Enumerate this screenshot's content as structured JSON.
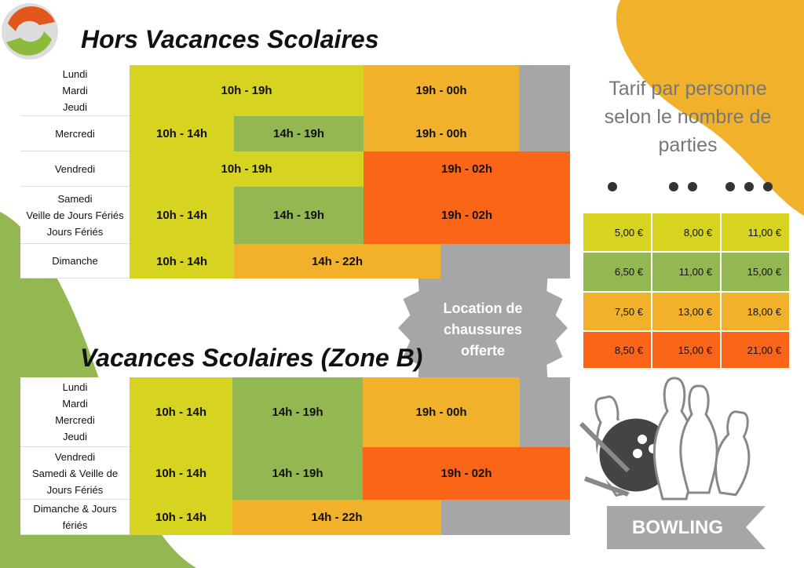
{
  "title_regular": "Hors Vacances Scolaires",
  "table_regular": {
    "rows": [
      {
        "label": [
          "Lundi",
          "Mardi",
          "Jeudi"
        ],
        "cells": [
          {
            "text": "10h - 19h",
            "color": "#d6d321"
          },
          {
            "text": "19h - 00h",
            "color": "#f2b12b"
          },
          {
            "text": null,
            "color": "#a6a6a6"
          }
        ]
      },
      {
        "label": [
          "Mercredi"
        ],
        "cells": [
          {
            "text": "10h - 14h",
            "color": "#d6d321"
          },
          {
            "text": "14h - 19h",
            "color": "#93b852"
          },
          {
            "text": "19h - 00h",
            "color": "#f2b12b"
          },
          {
            "text": null,
            "color": "#a6a6a6"
          }
        ]
      },
      {
        "label": [
          "Vendredi"
        ],
        "cells": [
          {
            "text": "10h - 19h",
            "color": "#d6d321"
          },
          {
            "text": "19h - 02h",
            "color": "#fb6517"
          }
        ]
      },
      {
        "label": [
          "Samedi",
          "Veille de Jours Fériés",
          "Jours Fériés"
        ],
        "cells": [
          {
            "text": "10h - 14h",
            "color": "#d6d321"
          },
          {
            "text": "14h - 19h",
            "color": "#93b852"
          },
          {
            "text": "19h - 02h",
            "color": "#fb6517"
          }
        ]
      },
      {
        "label": [
          "Dimanche"
        ],
        "cells": [
          {
            "text": "10h - 14h",
            "color": "#d6d321"
          },
          {
            "text": "14h - 22h",
            "color": "#f2b12b"
          },
          {
            "text": null,
            "color": "#a6a6a6"
          }
        ]
      }
    ]
  },
  "badge": [
    "Location de",
    "chaussures",
    "offerte"
  ],
  "title_holidays": "Vacances Scolaires (Zone B)",
  "table_holidays": {
    "rows": [
      {
        "label": [
          "Lundi",
          "Mardi",
          "Mercredi",
          "Jeudi"
        ],
        "cells": [
          {
            "text": "10h - 14h",
            "color": "#d6d321"
          },
          {
            "text": "14h - 19h",
            "color": "#93b852"
          },
          {
            "text": "19h - 00h",
            "color": "#f2b12b"
          },
          {
            "text": null,
            "color": "#a6a6a6"
          }
        ]
      },
      {
        "label": [
          "Vendredi",
          "Samedi & Veille de",
          "Jours Fériés"
        ],
        "cells": [
          {
            "text": "10h - 14h",
            "color": "#d6d321"
          },
          {
            "text": "14h - 19h",
            "color": "#93b852"
          },
          {
            "text": "19h - 02h",
            "color": "#fb6517"
          }
        ]
      },
      {
        "label": [
          "Dimanche & Jours",
          "fériés"
        ],
        "cells": [
          {
            "text": "10h - 14h",
            "color": "#d6d321"
          },
          {
            "text": "14h - 22h",
            "color": "#f2b12b"
          },
          {
            "text": null,
            "color": "#a6a6a6"
          }
        ]
      }
    ]
  },
  "tariff": {
    "title": [
      "Tarif par personne",
      "selon le nombre de",
      "parties"
    ],
    "rows": [
      {
        "color": "#d6d321",
        "prices": [
          "5,00 €",
          "8,00 €",
          "11,00 €"
        ]
      },
      {
        "color": "#93b852",
        "prices": [
          "6,50 €",
          "11,00 €",
          "15,00 €"
        ]
      },
      {
        "color": "#f2b12b",
        "prices": [
          "7,50 €",
          "13,00 €",
          "18,00 €"
        ]
      },
      {
        "color": "#fb6517",
        "prices": [
          "8,50 €",
          "15,00 €",
          "21,00 €"
        ]
      }
    ]
  },
  "ribbon": "BOWLING"
}
